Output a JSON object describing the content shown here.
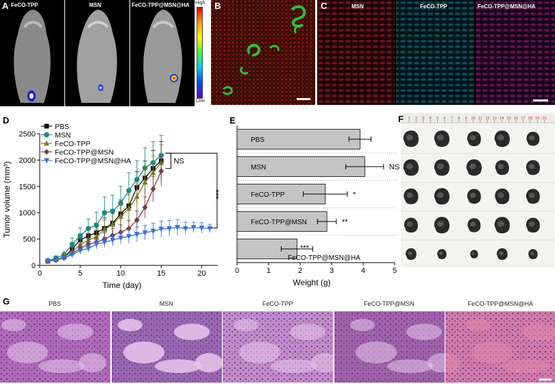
{
  "panels": {
    "A": {
      "label": "A",
      "captions": [
        "FeCO-TPP",
        "MSN",
        "FeCO-TPP@MSN@HA"
      ],
      "colorbar_high": "High",
      "colorbar_low": "Low"
    },
    "B": {
      "label": "B"
    },
    "C": {
      "label": "C",
      "captions": [
        "MSN",
        "FeCO-TPP",
        "FeCO-TPP@MSN@HA"
      ],
      "colors": [
        "#c02030",
        "#1a8aa8",
        "#b02a9a"
      ]
    },
    "D": {
      "label": "D"
    },
    "E": {
      "label": "E"
    },
    "F": {
      "label": "F",
      "ruler_numbers": [
        "1",
        "2",
        "3",
        "4",
        "5",
        "6",
        "7",
        "8",
        "9",
        "10",
        "11",
        "12",
        "13",
        "14",
        "15",
        "16",
        "17",
        "18",
        "19",
        "20"
      ]
    },
    "G": {
      "label": "G",
      "titles": [
        "PBS",
        "MSN",
        "FeCO-TPP",
        "FeCO-TPP@MSN",
        "FeCO-TPP@MSN@HA"
      ]
    }
  },
  "chart_data": [
    {
      "type": "line",
      "panel": "D",
      "xlabel": "Time (day)",
      "ylabel": "Tumor volume (mm³)",
      "xlim": [
        0,
        22
      ],
      "ylim": [
        0,
        2500
      ],
      "xticks": [
        0,
        5,
        10,
        15,
        20
      ],
      "yticks": [
        0,
        500,
        1000,
        1500,
        2000,
        2500
      ],
      "legend_position": "top-left",
      "series": [
        {
          "name": "PBS",
          "color": "#111111",
          "marker": "square",
          "x": [
            1,
            2,
            3,
            4,
            5,
            6,
            7,
            8,
            9,
            10,
            11,
            12,
            13,
            14,
            15
          ],
          "y": [
            80,
            110,
            160,
            310,
            480,
            560,
            620,
            700,
            800,
            980,
            1130,
            1480,
            1660,
            1840,
            1990
          ],
          "err": [
            30,
            40,
            60,
            90,
            120,
            150,
            180,
            200,
            220,
            260,
            280,
            300,
            320,
            340,
            360
          ]
        },
        {
          "name": "MSN",
          "color": "#1a8a86",
          "marker": "circle",
          "x": [
            1,
            2,
            3,
            4,
            5,
            6,
            7,
            8,
            9,
            10,
            11,
            12,
            13,
            14,
            15
          ],
          "y": [
            90,
            140,
            200,
            400,
            560,
            700,
            760,
            1000,
            1030,
            1180,
            1420,
            1630,
            1850,
            1950,
            2090
          ],
          "err": [
            30,
            40,
            60,
            120,
            150,
            180,
            250,
            300,
            300,
            320,
            340,
            360,
            380,
            400,
            380
          ]
        },
        {
          "name": "FeCO-TPP",
          "color": "#7a7a20",
          "marker": "triangle-up",
          "x": [
            1,
            2,
            3,
            4,
            5,
            6,
            7,
            8,
            9,
            10,
            11,
            12,
            13,
            14,
            15
          ],
          "y": [
            80,
            110,
            160,
            260,
            390,
            480,
            540,
            680,
            780,
            930,
            1080,
            1310,
            1580,
            1760,
            1950
          ],
          "err": [
            30,
            40,
            50,
            80,
            110,
            130,
            150,
            180,
            200,
            230,
            260,
            280,
            300,
            320,
            340
          ]
        },
        {
          "name": "FeCO-TPP@MSN",
          "color": "#7a3a40",
          "marker": "diamond",
          "x": [
            1,
            2,
            3,
            4,
            5,
            6,
            7,
            8,
            9,
            10,
            11,
            12,
            13,
            14,
            15
          ],
          "y": [
            80,
            100,
            140,
            220,
            320,
            400,
            440,
            500,
            570,
            630,
            700,
            860,
            1100,
            1450,
            1790
          ],
          "err": [
            25,
            30,
            40,
            60,
            80,
            100,
            110,
            120,
            130,
            140,
            150,
            170,
            200,
            240,
            280
          ]
        },
        {
          "name": "FeCO-TPP@MSN@HA",
          "color": "#3a72d8",
          "marker": "triangle-down",
          "x": [
            1,
            2,
            3,
            4,
            5,
            6,
            7,
            8,
            9,
            10,
            11,
            12,
            13,
            14,
            15,
            16,
            17,
            18,
            19,
            20,
            21
          ],
          "y": [
            80,
            100,
            140,
            200,
            280,
            320,
            400,
            440,
            480,
            520,
            550,
            590,
            620,
            650,
            690,
            700,
            720,
            700,
            720,
            710,
            700
          ],
          "err": [
            20,
            30,
            40,
            50,
            60,
            70,
            90,
            100,
            110,
            120,
            130,
            140,
            140,
            150,
            150,
            150,
            150,
            120,
            100,
            100,
            80
          ]
        }
      ],
      "annotations": [
        "NS",
        "***"
      ]
    },
    {
      "type": "bar",
      "panel": "E",
      "orientation": "horizontal",
      "xlabel": "Weight (g)",
      "xlim": [
        0,
        5
      ],
      "xticks": [
        0,
        1,
        2,
        3,
        4,
        5
      ],
      "categories": [
        "PBS",
        "MSN",
        "FeCO-TPP",
        "FeCO-TPP@MSN",
        "FeCO-TPP@MSN@HA"
      ],
      "values": [
        3.9,
        4.05,
        2.8,
        2.85,
        1.9
      ],
      "err": [
        0.35,
        0.6,
        0.7,
        0.3,
        0.5
      ],
      "significance": [
        "",
        "NS",
        "*",
        "**",
        "***"
      ]
    }
  ]
}
